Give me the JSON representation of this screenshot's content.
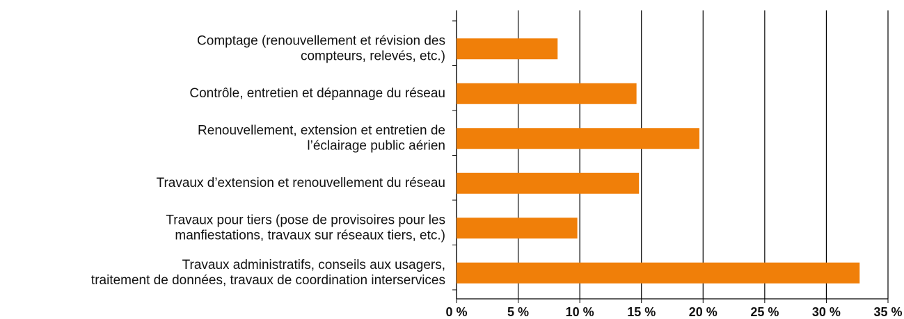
{
  "chart_data": {
    "type": "bar",
    "orientation": "horizontal",
    "categories": [
      [
        "Comptage (renouvellement et révision des",
        "compteurs, relevés, etc.)"
      ],
      [
        "Contrôle, entretien et dépannage du réseau"
      ],
      [
        "Renouvellement, extension et entretien de",
        "l’éclairage public aérien"
      ],
      [
        "Travaux d’extension et renouvellement du réseau"
      ],
      [
        "Travaux pour tiers (pose de provisoires pour les",
        "manfiestations, travaux sur réseaux tiers, etc.)"
      ],
      [
        "Travaux administratifs, conseils aux usagers,",
        "traitement de données, travaux de coordination interservices"
      ]
    ],
    "values": [
      8.2,
      14.6,
      19.7,
      14.8,
      9.8,
      32.7
    ],
    "color": "#f07f09",
    "xlim": [
      0,
      35
    ],
    "xticks": [
      {
        "value": 0,
        "label": "0 %"
      },
      {
        "value": 5,
        "label": "5 %"
      },
      {
        "value": 10,
        "label": "10 %"
      },
      {
        "value": 15,
        "label": "15 %"
      },
      {
        "value": 20,
        "label": "20 %"
      },
      {
        "value": 25,
        "label": "25 %"
      },
      {
        "value": 30,
        "label": "30 %"
      },
      {
        "value": 35,
        "label": "35 %"
      }
    ],
    "grid": true
  }
}
